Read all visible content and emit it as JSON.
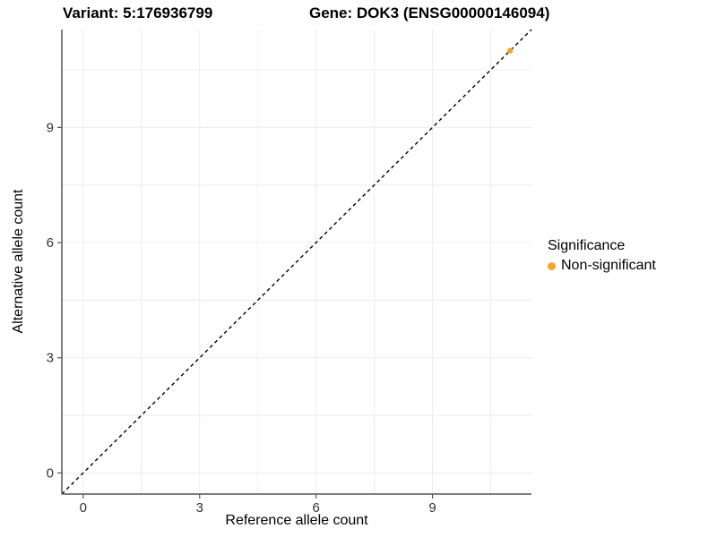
{
  "chart_data": {
    "type": "scatter",
    "title_left": "Variant: 5:176936799",
    "title_right": "Gene: DOK3 (ENSG00000146094)",
    "xlabel": "Reference allele count",
    "ylabel": "Alternative allele count",
    "xlim": [
      -0.55,
      11.55
    ],
    "ylim": [
      -0.55,
      11.55
    ],
    "x_major_ticks": [
      0,
      3,
      6,
      9
    ],
    "x_minor_ticks": [
      1.5,
      4.5,
      7.5,
      10.5
    ],
    "y_major_ticks": [
      0,
      3,
      6,
      9
    ],
    "y_minor_ticks": [
      1.5,
      4.5,
      7.5,
      10.5
    ],
    "grid": true,
    "reference_line": {
      "kind": "identity",
      "style": "dashed",
      "color": "#000000"
    },
    "series": [
      {
        "name": "Non-significant",
        "color": "#F9A32C",
        "points": [
          {
            "x": 11,
            "y": 11
          }
        ]
      }
    ],
    "legend": {
      "title": "Significance",
      "position": "right",
      "items": [
        {
          "label": "Non-significant",
          "color": "#F9A32C"
        }
      ]
    },
    "colors": {
      "grid": "#ECECEC",
      "axis_line": "#555555",
      "tick_text": "#333333"
    }
  }
}
